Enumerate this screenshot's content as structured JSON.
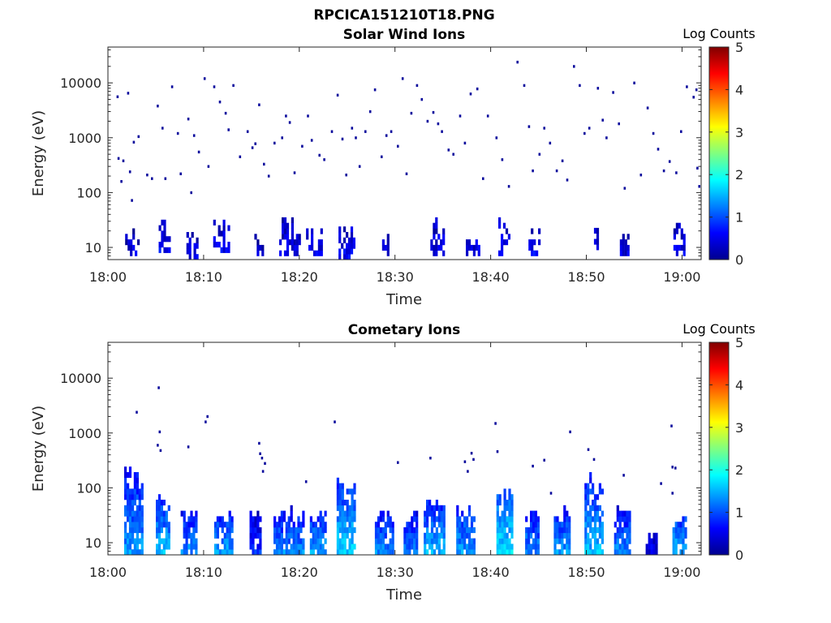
{
  "figure": {
    "title": "RPCICA151210T18.PNG"
  },
  "colorbar": {
    "label": "Log Counts",
    "range": [
      0,
      5
    ],
    "ticks": [
      "0",
      "1",
      "2",
      "3",
      "4",
      "5"
    ]
  },
  "chart_data": [
    {
      "type": "heatmap",
      "title": "Solar Wind Ions",
      "xlabel": "Time",
      "ylabel": "Energy (eV)",
      "x_ticks": [
        "18:00",
        "18:10",
        "18:20",
        "18:30",
        "18:40",
        "18:50",
        "19:00"
      ],
      "x_range_minutes": [
        0,
        62
      ],
      "y_ticks": [
        "10",
        "100",
        "1000",
        "10000"
      ],
      "y_scale": "log",
      "y_range": [
        6,
        45000
      ],
      "colorbar_label": "Log Counts",
      "colorbar_range": [
        0,
        5
      ],
      "low_energy_blocks": [
        {
          "t": [
            1.8,
            3.2
          ],
          "e": [
            7,
            22
          ],
          "c": 0.5
        },
        {
          "t": [
            5.3,
            6.5
          ],
          "e": [
            8,
            40
          ],
          "c": 0.6
        },
        {
          "t": [
            8.2,
            9.4
          ],
          "e": [
            6,
            25
          ],
          "c": 0.6
        },
        {
          "t": [
            11.0,
            12.6
          ],
          "e": [
            8,
            35
          ],
          "c": 0.6
        },
        {
          "t": [
            15.3,
            16.1
          ],
          "e": [
            7,
            15
          ],
          "c": 0.4
        },
        {
          "t": [
            17.9,
            19.9
          ],
          "e": [
            7,
            30
          ],
          "c": 0.6
        },
        {
          "t": [
            20.7,
            22.4
          ],
          "e": [
            7,
            25
          ],
          "c": 0.6
        },
        {
          "t": [
            24.1,
            25.8
          ],
          "e": [
            6,
            30
          ],
          "c": 0.6
        },
        {
          "t": [
            28.4,
            29.3
          ],
          "e": [
            7,
            20
          ],
          "c": 0.5
        },
        {
          "t": [
            33.7,
            35.2
          ],
          "e": [
            7,
            30
          ],
          "c": 0.6
        },
        {
          "t": [
            37.4,
            38.7
          ],
          "e": [
            7,
            25
          ],
          "c": 0.6
        },
        {
          "t": [
            40.8,
            42.0
          ],
          "e": [
            7,
            40
          ],
          "c": 0.6
        },
        {
          "t": [
            43.7,
            45.0
          ],
          "e": [
            7,
            25
          ],
          "c": 0.6
        },
        {
          "t": [
            50.8,
            51.3
          ],
          "e": [
            9,
            25
          ],
          "c": 0.5
        },
        {
          "t": [
            53.5,
            54.3
          ],
          "e": [
            7,
            20
          ],
          "c": 0.5
        },
        {
          "t": [
            59.1,
            60.3
          ],
          "e": [
            7,
            30
          ],
          "c": 0.6
        }
      ],
      "high_energy_points": [
        [
          1.0,
          5600
        ],
        [
          1.1,
          420
        ],
        [
          1.4,
          160
        ],
        [
          1.6,
          380
        ],
        [
          2.1,
          6500
        ],
        [
          2.3,
          240
        ],
        [
          2.5,
          72
        ],
        [
          2.7,
          830
        ],
        [
          3.2,
          1050
        ],
        [
          4.1,
          210
        ],
        [
          4.6,
          180
        ],
        [
          5.2,
          3800
        ],
        [
          5.7,
          1500
        ],
        [
          6.0,
          180
        ],
        [
          6.7,
          8500
        ],
        [
          7.3,
          1200
        ],
        [
          7.6,
          220
        ],
        [
          8.4,
          2200
        ],
        [
          8.7,
          100
        ],
        [
          9.0,
          1100
        ],
        [
          9.5,
          550
        ],
        [
          10.1,
          12000
        ],
        [
          10.5,
          300
        ],
        [
          11.1,
          8500
        ],
        [
          11.7,
          4500
        ],
        [
          12.3,
          2800
        ],
        [
          12.6,
          1400
        ],
        [
          13.1,
          9000
        ],
        [
          13.8,
          450
        ],
        [
          14.6,
          1300
        ],
        [
          15.1,
          660
        ],
        [
          15.4,
          780
        ],
        [
          15.8,
          4000
        ],
        [
          16.3,
          330
        ],
        [
          16.8,
          200
        ],
        [
          17.4,
          800
        ],
        [
          18.2,
          1000
        ],
        [
          18.6,
          2500
        ],
        [
          19.0,
          1900
        ],
        [
          19.5,
          230
        ],
        [
          20.3,
          700
        ],
        [
          20.9,
          2500
        ],
        [
          21.3,
          900
        ],
        [
          22.1,
          480
        ],
        [
          22.6,
          400
        ],
        [
          23.4,
          1300
        ],
        [
          24.0,
          6000
        ],
        [
          24.5,
          950
        ],
        [
          24.9,
          210
        ],
        [
          25.5,
          1500
        ],
        [
          25.9,
          1000
        ],
        [
          26.3,
          300
        ],
        [
          26.9,
          1300
        ],
        [
          27.4,
          3000
        ],
        [
          27.9,
          7500
        ],
        [
          28.6,
          450
        ],
        [
          29.1,
          1100
        ],
        [
          29.6,
          1300
        ],
        [
          30.3,
          700
        ],
        [
          30.8,
          12000
        ],
        [
          31.2,
          220
        ],
        [
          31.7,
          2800
        ],
        [
          32.3,
          9000
        ],
        [
          32.8,
          5000
        ],
        [
          33.4,
          2000
        ],
        [
          34.0,
          2900
        ],
        [
          34.5,
          1800
        ],
        [
          34.9,
          1300
        ],
        [
          35.6,
          600
        ],
        [
          36.1,
          500
        ],
        [
          36.8,
          2500
        ],
        [
          37.3,
          800
        ],
        [
          37.9,
          6300
        ],
        [
          38.6,
          7800
        ],
        [
          39.2,
          180
        ],
        [
          39.7,
          2500
        ],
        [
          40.6,
          1000
        ],
        [
          41.2,
          400
        ],
        [
          41.9,
          130
        ],
        [
          42.8,
          24000
        ],
        [
          43.5,
          9000
        ],
        [
          44.0,
          1600
        ],
        [
          44.4,
          250
        ],
        [
          45.1,
          500
        ],
        [
          45.6,
          1500
        ],
        [
          46.2,
          800
        ],
        [
          46.9,
          250
        ],
        [
          47.5,
          380
        ],
        [
          48.0,
          170
        ],
        [
          48.7,
          20000
        ],
        [
          49.3,
          9000
        ],
        [
          49.8,
          1200
        ],
        [
          50.3,
          1500
        ],
        [
          51.2,
          8000
        ],
        [
          51.7,
          2100
        ],
        [
          52.1,
          1000
        ],
        [
          52.8,
          6700
        ],
        [
          53.4,
          1800
        ],
        [
          54.0,
          120
        ],
        [
          55.0,
          10000
        ],
        [
          55.7,
          210
        ],
        [
          56.4,
          3500
        ],
        [
          57.0,
          1200
        ],
        [
          57.5,
          620
        ],
        [
          58.1,
          250
        ],
        [
          58.7,
          370
        ],
        [
          59.4,
          230
        ],
        [
          59.9,
          1300
        ],
        [
          60.5,
          8500
        ],
        [
          61.2,
          5500
        ],
        [
          61.5,
          7500
        ],
        [
          61.6,
          280
        ],
        [
          61.8,
          130
        ]
      ]
    },
    {
      "type": "heatmap",
      "title": "Cometary Ions",
      "xlabel": "Time",
      "ylabel": "Energy (eV)",
      "x_ticks": [
        "18:00",
        "18:10",
        "18:20",
        "18:30",
        "18:40",
        "18:50",
        "19:00"
      ],
      "x_range_minutes": [
        0,
        62
      ],
      "y_ticks": [
        "10",
        "100",
        "1000",
        "10000"
      ],
      "y_scale": "log",
      "y_range": [
        6,
        45000
      ],
      "colorbar_label": "Log Counts",
      "colorbar_range": [
        0,
        5
      ],
      "bursts": [
        {
          "t": [
            1.7,
            3.6
          ],
          "e": [
            6,
            300
          ],
          "c": 1.4
        },
        {
          "t": [
            5.0,
            6.4
          ],
          "e": [
            6,
            80
          ],
          "c": 1.6
        },
        {
          "t": [
            7.6,
            9.3
          ],
          "e": [
            6,
            40
          ],
          "c": 1.4
        },
        {
          "t": [
            11.1,
            13.0
          ],
          "e": [
            6,
            40
          ],
          "c": 1.5
        },
        {
          "t": [
            14.8,
            16.0
          ],
          "e": [
            6,
            40
          ],
          "c": 0.9
        },
        {
          "t": [
            17.3,
            20.4
          ],
          "e": [
            6,
            40
          ],
          "c": 1.4
        },
        {
          "t": [
            21.1,
            22.8
          ],
          "e": [
            6,
            40
          ],
          "c": 1.5
        },
        {
          "t": [
            23.9,
            25.7
          ],
          "e": [
            6,
            180
          ],
          "c": 1.7
        },
        {
          "t": [
            27.9,
            29.8
          ],
          "e": [
            6,
            40
          ],
          "c": 1.4
        },
        {
          "t": [
            30.9,
            32.4
          ],
          "e": [
            6,
            40
          ],
          "c": 1.3
        },
        {
          "t": [
            33.0,
            35.2
          ],
          "e": [
            6,
            60
          ],
          "c": 1.6
        },
        {
          "t": [
            36.4,
            38.2
          ],
          "e": [
            6,
            50
          ],
          "c": 1.5
        },
        {
          "t": [
            40.6,
            42.3
          ],
          "e": [
            6,
            180
          ],
          "c": 1.8
        },
        {
          "t": [
            43.6,
            45.1
          ],
          "e": [
            6,
            40
          ],
          "c": 1.4
        },
        {
          "t": [
            46.6,
            48.2
          ],
          "e": [
            6,
            40
          ],
          "c": 1.5
        },
        {
          "t": [
            49.8,
            51.7
          ],
          "e": [
            6,
            180
          ],
          "c": 1.6
        },
        {
          "t": [
            52.9,
            54.6
          ],
          "e": [
            6,
            40
          ],
          "c": 1.4
        },
        {
          "t": [
            56.2,
            57.4
          ],
          "e": [
            6,
            16
          ],
          "c": 0.6
        },
        {
          "t": [
            59.0,
            60.3
          ],
          "e": [
            6,
            40
          ],
          "c": 1.6
        }
      ],
      "high_energy_points": [
        [
          3.0,
          2400
        ],
        [
          5.3,
          6700
        ],
        [
          5.4,
          1050
        ],
        [
          5.2,
          600
        ],
        [
          5.5,
          480
        ],
        [
          8.4,
          560
        ],
        [
          10.2,
          1600
        ],
        [
          10.4,
          2000
        ],
        [
          15.8,
          650
        ],
        [
          15.9,
          420
        ],
        [
          16.1,
          350
        ],
        [
          16.4,
          280
        ],
        [
          16.2,
          200
        ],
        [
          20.7,
          130
        ],
        [
          23.7,
          1600
        ],
        [
          30.3,
          290
        ],
        [
          33.7,
          350
        ],
        [
          37.3,
          300
        ],
        [
          37.6,
          200
        ],
        [
          38.0,
          430
        ],
        [
          38.2,
          330
        ],
        [
          40.5,
          1500
        ],
        [
          40.7,
          460
        ],
        [
          44.4,
          250
        ],
        [
          45.6,
          320
        ],
        [
          46.3,
          80
        ],
        [
          48.3,
          1050
        ],
        [
          50.2,
          500
        ],
        [
          50.8,
          330
        ],
        [
          53.9,
          170
        ],
        [
          57.8,
          120
        ],
        [
          58.9,
          1350
        ],
        [
          59.0,
          240
        ],
        [
          59.3,
          230
        ],
        [
          59.0,
          80
        ]
      ]
    }
  ]
}
